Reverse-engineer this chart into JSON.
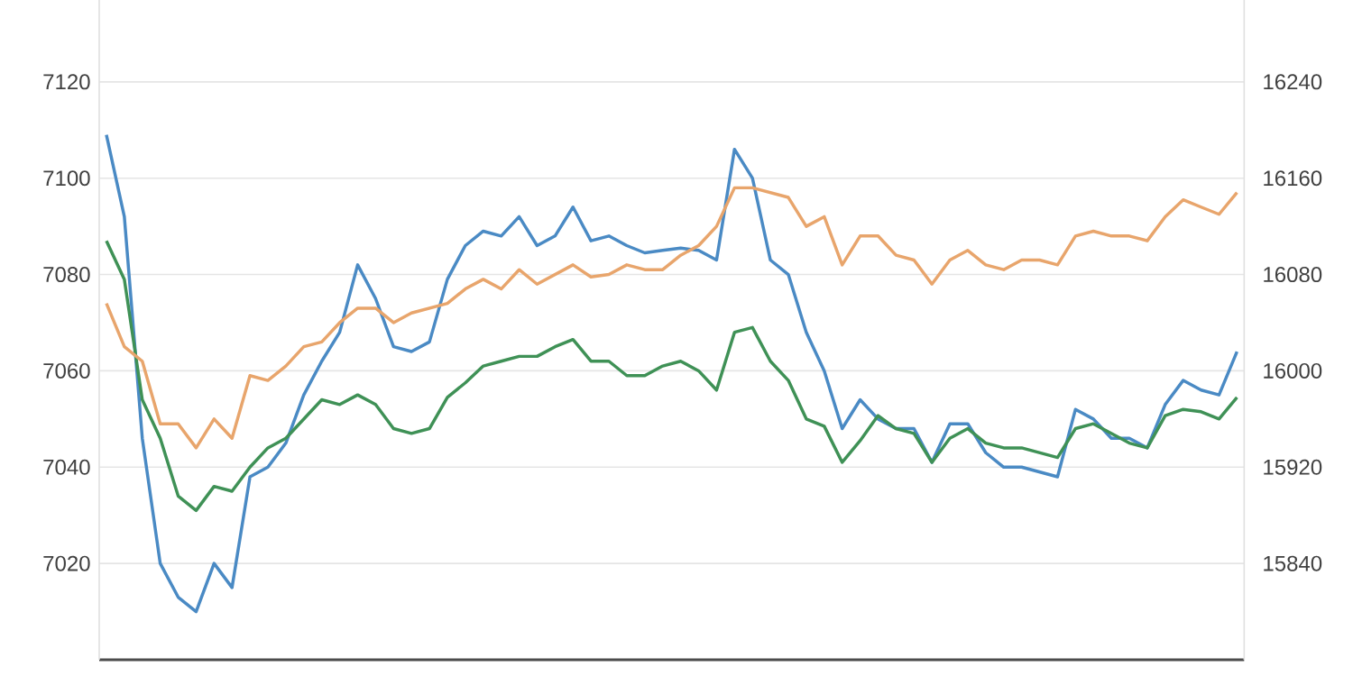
{
  "chart_data": {
    "type": "line",
    "categories": [
      null,
      null,
      null,
      null,
      null,
      null,
      null,
      null,
      null,
      null,
      null,
      null,
      null,
      null,
      null,
      null,
      null,
      null,
      null,
      null,
      null,
      null,
      null,
      null,
      null,
      null,
      null,
      null,
      null,
      null,
      null,
      null,
      null,
      null,
      null,
      null,
      null,
      null,
      null,
      null,
      null,
      null,
      null,
      null,
      null,
      null,
      null,
      null,
      null,
      null,
      null,
      null,
      null,
      null,
      null,
      null,
      null,
      null,
      null,
      null,
      null,
      null,
      null,
      null
    ],
    "series": [
      {
        "color": "#4a8ac4",
        "axis": "y",
        "values": [
          7109,
          7092,
          7046,
          7020,
          7013,
          7010,
          7020,
          7015,
          7038,
          7040,
          7045,
          7055,
          7062,
          7068,
          7082,
          7075,
          7065,
          7064,
          7066,
          7079,
          7086,
          7089,
          7088,
          7092,
          7086,
          7088,
          7094,
          7087,
          7088,
          7086,
          7084.5,
          7085,
          7085.5,
          7085,
          7083,
          7106,
          7100,
          7083,
          7080,
          7068,
          7060,
          7048,
          7054,
          7050,
          7048,
          7048,
          7041,
          7049,
          7049,
          7043,
          7040,
          7040,
          7039,
          7038,
          7052,
          7050,
          7046,
          7046,
          7044,
          7053,
          7058,
          7056,
          7055,
          7064
        ]
      },
      {
        "color": "#e8a56c",
        "axis": "y2",
        "values": [
          16056,
          16020,
          16008,
          15956,
          15956,
          15936,
          15960,
          15944,
          15996,
          15992,
          16004,
          16020,
          16024,
          16040,
          16052,
          16052,
          16040,
          16048,
          16052,
          16056,
          16068,
          16076,
          16068,
          16084,
          16072,
          16080,
          16088,
          16078,
          16080,
          16088,
          16084,
          16084,
          16096,
          16104,
          16120,
          16152,
          16152,
          16148,
          16144,
          16120,
          16128,
          16088,
          16112,
          16112,
          16096,
          16092,
          16072,
          16092,
          16100,
          16088,
          16084,
          16092,
          16092,
          16088,
          16112,
          16116,
          16112,
          16112,
          16108,
          16128,
          16142,
          16136,
          16130,
          16148
        ]
      },
      {
        "color": "#3f9156",
        "axis": "y",
        "values": [
          7087,
          7079,
          7054,
          7046,
          7034,
          7031,
          7036,
          7035,
          7040,
          7044,
          7046,
          7050,
          7054,
          7053,
          7055,
          7053,
          7048,
          7047,
          7048,
          7054.5,
          7057.5,
          7061,
          7062,
          7063,
          7063,
          7065,
          7066.5,
          7062,
          7062,
          7059,
          7059,
          7061,
          7062,
          7060,
          7056,
          7068,
          7069,
          7062,
          7058,
          7050,
          7048.5,
          7041,
          7045.5,
          7050.7,
          7048,
          7047,
          7041,
          7046,
          7048,
          7045,
          7044,
          7044,
          7043,
          7042,
          7048,
          7049,
          7047,
          7045,
          7044,
          7050.7,
          7052,
          7051.5,
          7050,
          7054.5
        ]
      }
    ],
    "ylim": [
      7000,
      7137
    ],
    "yticks": [
      7020,
      7040,
      7060,
      7080,
      7100,
      7120
    ],
    "y2lim": [
      15760,
      16308
    ],
    "y2ticks": [
      15840,
      15920,
      16000,
      16080,
      16160,
      16240
    ],
    "grid": "y",
    "line_style": "solid"
  }
}
